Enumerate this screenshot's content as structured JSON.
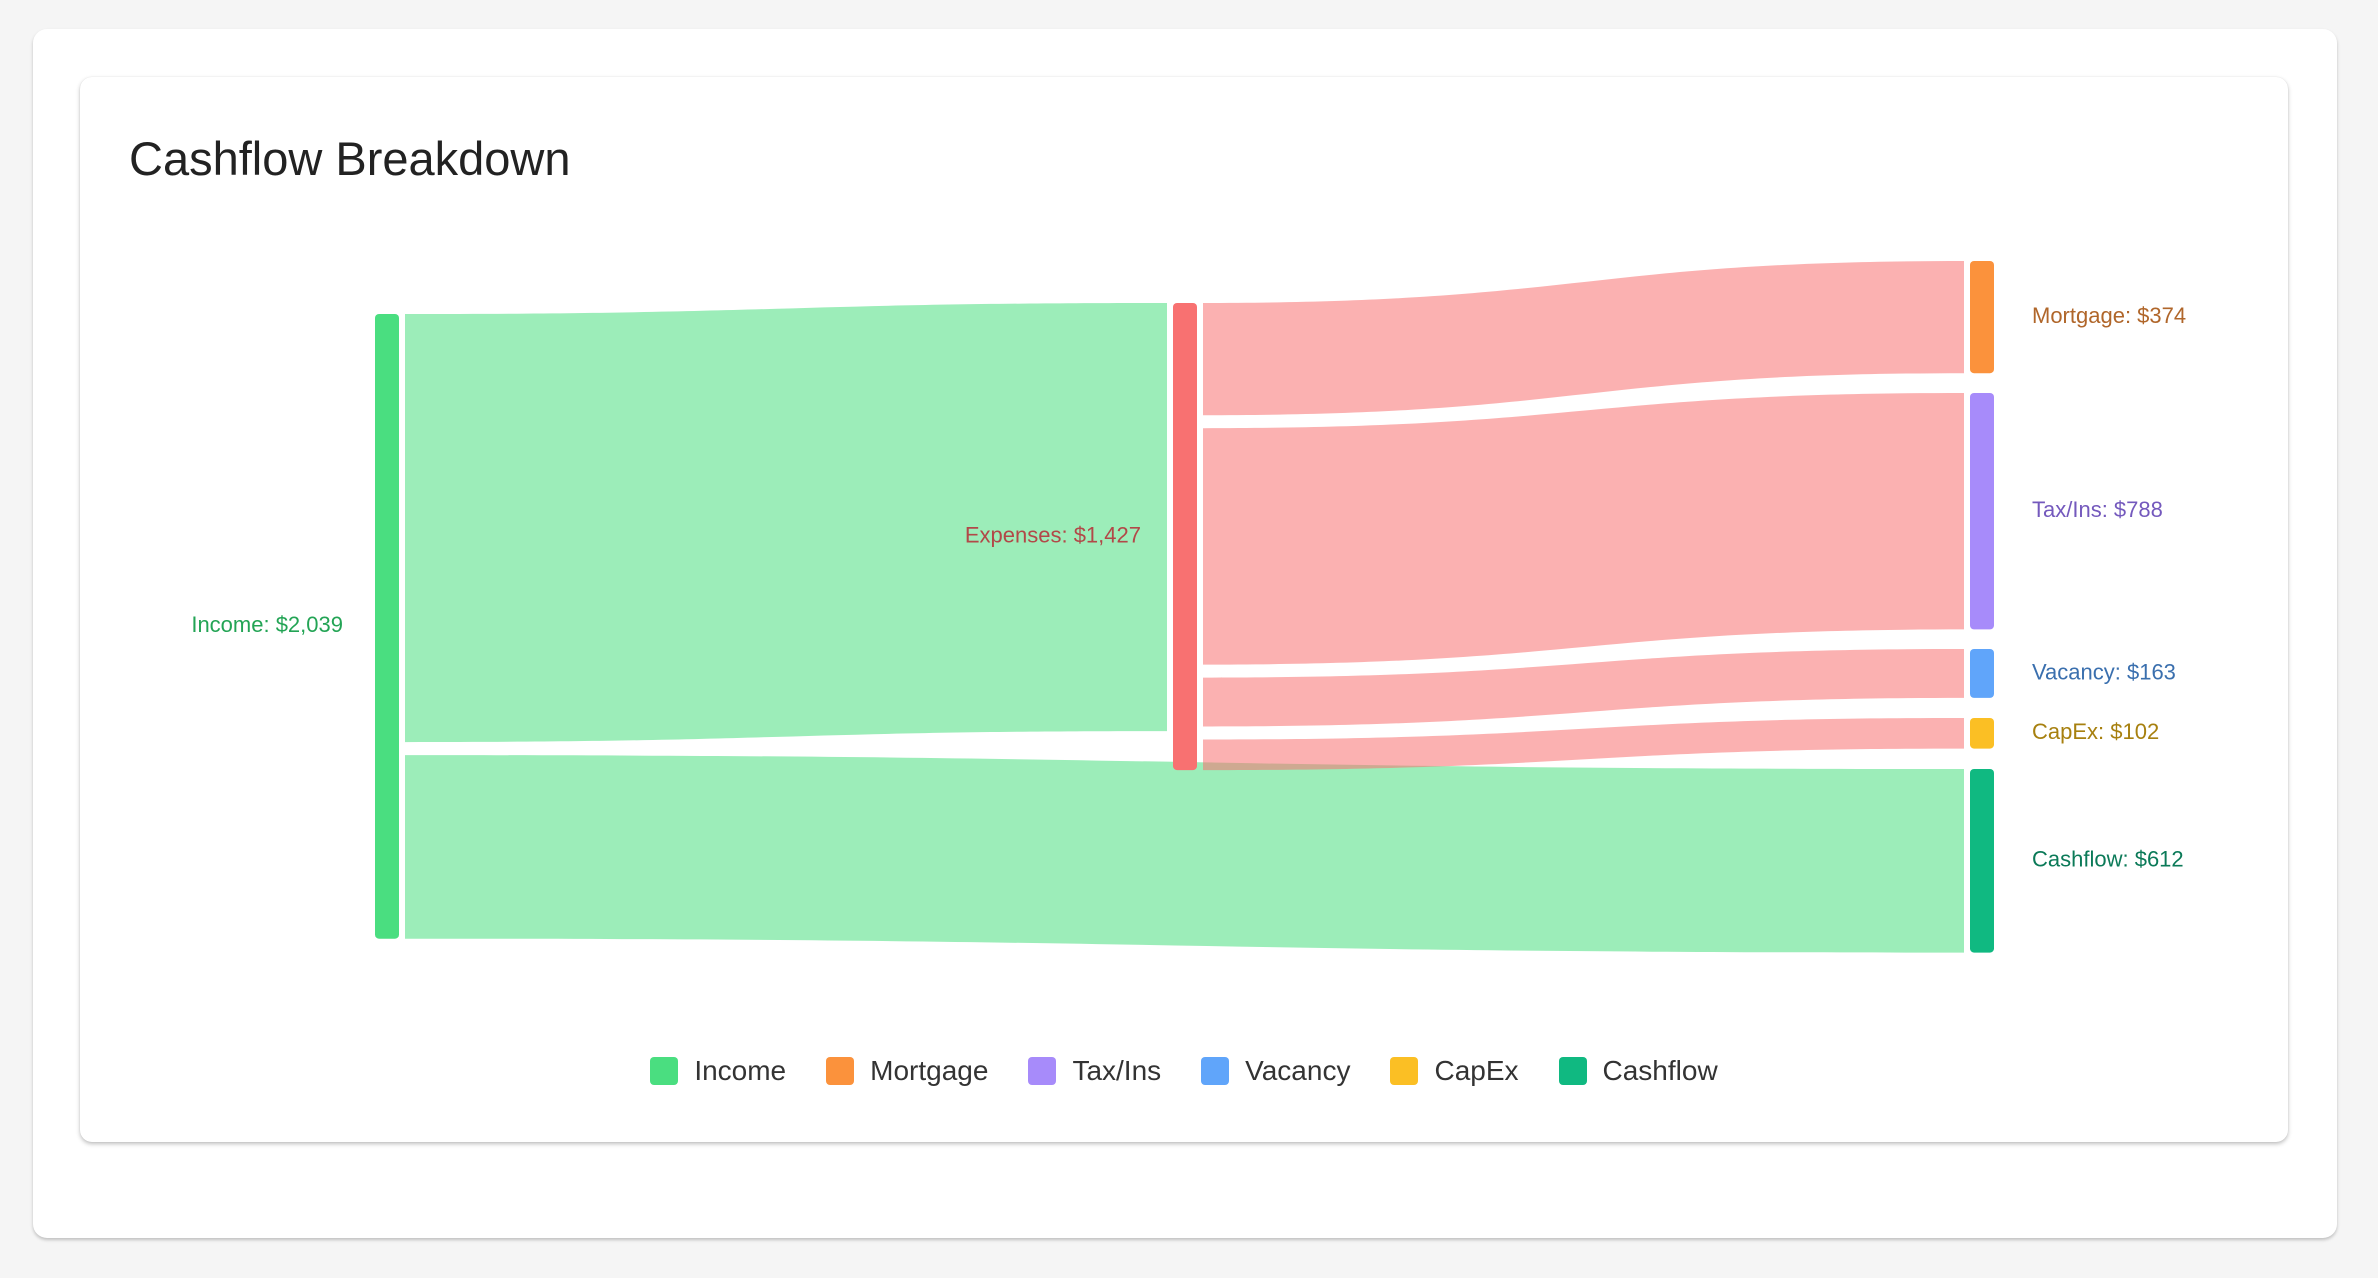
{
  "chart_data": {
    "type": "sankey",
    "title": "Cashflow Breakdown",
    "nodes": [
      {
        "name": "Income",
        "value": 2039,
        "label": "Income: $2,039",
        "color": "#4ade80",
        "label_color": "#23a455"
      },
      {
        "name": "Expenses",
        "value": 1427,
        "label": "Expenses: $1,427",
        "color": "#f87171",
        "label_color": "#b24848"
      },
      {
        "name": "Mortgage",
        "value": 374,
        "label": "Mortgage: $374",
        "color": "#fb923c",
        "label_color": "#b0662a"
      },
      {
        "name": "Tax/Ins",
        "value": 788,
        "label": "Tax/Ins: $788",
        "color": "#a78bfa",
        "label_color": "#7459bd"
      },
      {
        "name": "Vacancy",
        "value": 163,
        "label": "Vacancy: $163",
        "color": "#60a5fa",
        "label_color": "#3a6fae"
      },
      {
        "name": "CapEx",
        "value": 102,
        "label": "CapEx: $102",
        "color": "#fbbf24",
        "label_color": "#a7800f"
      },
      {
        "name": "Cashflow",
        "value": 612,
        "label": "Cashflow: $612",
        "color": "#10b981",
        "label_color": "#0b7a58"
      }
    ],
    "links": [
      {
        "source": 0,
        "target": 1,
        "value": 1427
      },
      {
        "source": 0,
        "target": 6,
        "value": 612
      },
      {
        "source": 1,
        "target": 2,
        "value": 374
      },
      {
        "source": 1,
        "target": 3,
        "value": 788
      },
      {
        "source": 1,
        "target": 4,
        "value": 163
      },
      {
        "source": 1,
        "target": 5,
        "value": 102
      }
    ],
    "legend": [
      {
        "name": "Income",
        "color": "#4ade80"
      },
      {
        "name": "Mortgage",
        "color": "#fb923c"
      },
      {
        "name": "Tax/Ins",
        "color": "#a78bfa"
      },
      {
        "name": "Vacancy",
        "color": "#60a5fa"
      },
      {
        "name": "CapEx",
        "color": "#fbbf24"
      },
      {
        "name": "Cashflow",
        "color": "#10b981"
      }
    ]
  }
}
